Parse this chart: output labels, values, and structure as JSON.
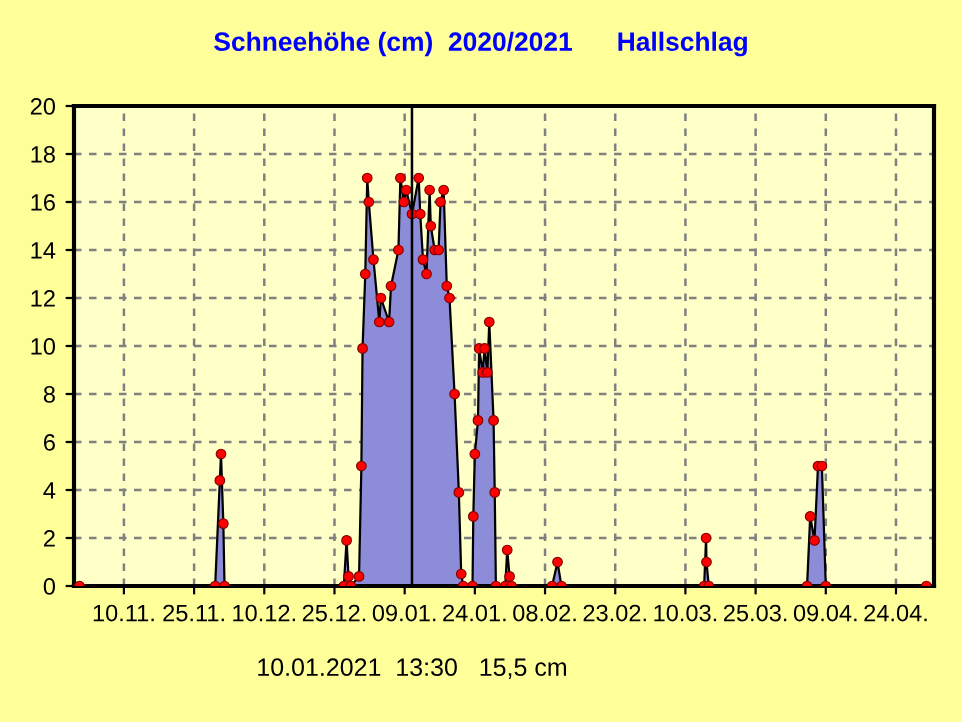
{
  "chart_data": {
    "type": "area",
    "title": "Schneehöhe (cm)  2020/2021      Hallschlag",
    "x": [
      "2020-10-31T12:00",
      "2020-11-29T12:00",
      "2020-11-30T12:00",
      "2020-11-30T18:00",
      "2020-12-01T06:00",
      "2020-12-01T12:00",
      "2020-12-27T00:00",
      "2020-12-27T14:00",
      "2020-12-28T00:00",
      "2020-12-28T12:00",
      "2020-12-30T06:00",
      "2020-12-30T18:00",
      "2020-12-31T00:00",
      "2020-12-31T14:00",
      "2021-01-01T00:00",
      "2021-01-01T08:00",
      "2021-01-02T08:00",
      "2021-01-03T14:00",
      "2021-01-03T22:00",
      "2021-01-05T16:00",
      "2021-01-06T02:00",
      "2021-01-07T16:00",
      "2021-01-08T02:00",
      "2021-01-08T20:00",
      "2021-01-09T08:00",
      "2021-01-10T13:30",
      "2021-01-12T00:00",
      "2021-01-12T08:00",
      "2021-01-12T22:00",
      "2021-01-13T16:00",
      "2021-01-14T08:00",
      "2021-01-14T14:00",
      "2021-01-15T10:00",
      "2021-01-16T06:00",
      "2021-01-16T16:00",
      "2021-01-17T08:00",
      "2021-01-18T00:00",
      "2021-01-18T14:00",
      "2021-01-19T16:00",
      "2021-01-20T14:00",
      "2021-01-21T02:00",
      "2021-01-21T12:00",
      "2021-01-23T12:00",
      "2021-01-23T16:00",
      "2021-01-24T00:00",
      "2021-01-24T16:00",
      "2021-01-24T22:00",
      "2021-01-25T16:00",
      "2021-01-26T02:00",
      "2021-01-26T16:00",
      "2021-01-27T02:00",
      "2021-01-28T00:00",
      "2021-01-28T06:00",
      "2021-01-28T12:00",
      "2021-01-30T12:00",
      "2021-01-30T22:00",
      "2021-01-31T10:00",
      "2021-01-31T20:00",
      "2021-02-09T12:00",
      "2021-02-10T16:00",
      "2021-02-11T12:00",
      "2021-03-14T00:00",
      "2021-03-14T10:00",
      "2021-03-14T12:00",
      "2021-03-15T00:00",
      "2021-04-05T00:00",
      "2021-04-05T16:00",
      "2021-04-06T14:00",
      "2021-04-07T08:00",
      "2021-04-08T04:00",
      "2021-04-09T00:00",
      "2021-04-30T12:00"
    ],
    "series": [
      {
        "color": "#8c8cd8",
        "values": [
          0,
          0,
          4.4,
          5.5,
          2.6,
          0,
          0,
          1.9,
          0.4,
          0,
          0.4,
          5.0,
          9.9,
          13.0,
          17.0,
          16.0,
          13.6,
          11.0,
          12.0,
          11.0,
          12.5,
          14.0,
          17.0,
          16.0,
          16.5,
          15.5,
          17.0,
          15.5,
          13.6,
          13.0,
          16.5,
          15.0,
          14.0,
          14.0,
          16.0,
          16.5,
          12.5,
          12.0,
          8.0,
          3.9,
          0.5,
          0,
          0,
          2.9,
          5.5,
          6.9,
          9.9,
          8.9,
          9.9,
          8.9,
          11.0,
          6.9,
          3.9,
          0,
          0,
          1.5,
          0.4,
          0,
          0,
          1.0,
          0,
          0,
          2.0,
          1.0,
          0,
          0,
          2.9,
          1.9,
          5.0,
          5.0,
          0,
          0
        ]
      },
      {
        "type": "scatter",
        "marker": "circle",
        "color": "#ff0000",
        "values": [
          0,
          0,
          4.4,
          5.5,
          2.6,
          0,
          0,
          1.9,
          0.4,
          0,
          0.4,
          5.0,
          9.9,
          13.0,
          17.0,
          16.0,
          13.6,
          11.0,
          12.0,
          11.0,
          12.5,
          14.0,
          17.0,
          16.0,
          16.5,
          15.5,
          17.0,
          15.5,
          13.6,
          13.0,
          16.5,
          15.0,
          14.0,
          14.0,
          16.0,
          16.5,
          12.5,
          12.0,
          8.0,
          3.9,
          0.5,
          0,
          0,
          2.9,
          5.5,
          6.9,
          9.9,
          8.9,
          9.9,
          8.9,
          11.0,
          6.9,
          3.9,
          0,
          0,
          1.5,
          0.4,
          0,
          0,
          1.0,
          0,
          0,
          2.0,
          1.0,
          0,
          0,
          2.9,
          1.9,
          5.0,
          5.0,
          0,
          0
        ]
      }
    ],
    "xlim": [
      "2020-10-30T08:00",
      "2021-05-02T03:00"
    ],
    "xticks": [
      {
        "value": "2020-11-10",
        "label": "10.11."
      },
      {
        "value": "2020-11-25",
        "label": "25.11."
      },
      {
        "value": "2020-12-10",
        "label": "10.12."
      },
      {
        "value": "2020-12-25",
        "label": "25.12."
      },
      {
        "value": "2021-01-09",
        "label": "09.01."
      },
      {
        "value": "2021-01-24",
        "label": "24.01."
      },
      {
        "value": "2021-02-08",
        "label": "08.02."
      },
      {
        "value": "2021-02-23",
        "label": "23.02."
      },
      {
        "value": "2021-03-10",
        "label": "10.03."
      },
      {
        "value": "2021-03-25",
        "label": "25.03."
      },
      {
        "value": "2021-04-09",
        "label": "09.04."
      },
      {
        "value": "2021-04-24",
        "label": "24.04."
      }
    ],
    "ylim": [
      0,
      20
    ],
    "yticks": [
      0,
      2,
      4,
      6,
      8,
      10,
      12,
      14,
      16,
      18,
      20
    ],
    "grid": true,
    "ref_lines": [
      {
        "axis": "x",
        "value": "2021-01-10T13:30",
        "label": "10.01.2021  13:30   15,5 cm",
        "color": "#000000"
      }
    ]
  }
}
